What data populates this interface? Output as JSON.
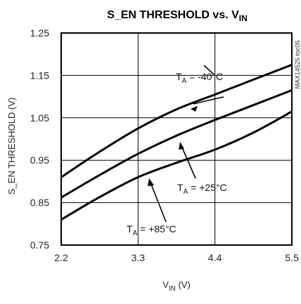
{
  "chart_data": {
    "type": "line",
    "title": {
      "main": "S_EN THRESHOLD vs. V",
      "sub": "IN"
    },
    "xlabel": {
      "main": "V",
      "sub": "IN",
      "suffix": " (V)"
    },
    "ylabel": "S_EN THRESHOLD (V)",
    "side_label": "MAX14525 toc05",
    "xlim": [
      2.2,
      5.5
    ],
    "ylim": [
      0.75,
      1.25
    ],
    "xticks": [
      "2.2",
      "3.3",
      "4.4",
      "5.5"
    ],
    "yticks": [
      "1.25",
      "1.15",
      "1.05",
      "0.95",
      "0.85",
      "0.75"
    ],
    "grid": true,
    "series": [
      {
        "name": "-40°C",
        "x": [
          2.2,
          2.75,
          3.3,
          3.85,
          4.4,
          4.95,
          5.5
        ],
        "y": [
          0.91,
          0.97,
          1.025,
          1.07,
          1.105,
          1.14,
          1.175
        ]
      },
      {
        "name": "+25°C",
        "x": [
          2.2,
          2.75,
          3.3,
          3.85,
          4.4,
          4.95,
          5.5
        ],
        "y": [
          0.862,
          0.915,
          0.965,
          1.008,
          1.045,
          1.08,
          1.115
        ]
      },
      {
        "name": "+85°C",
        "x": [
          2.2,
          2.75,
          3.3,
          3.85,
          4.4,
          4.95,
          5.5
        ],
        "y": [
          0.81,
          0.863,
          0.91,
          0.944,
          0.975,
          1.015,
          1.065
        ]
      }
    ],
    "annotations": [
      {
        "prefix": "T",
        "sub": "A",
        "text": " = -40°C"
      },
      {
        "prefix": "T",
        "sub": "A",
        "text": " = +25°C"
      },
      {
        "prefix": "T",
        "sub": "A",
        "text": " = +85°C"
      }
    ]
  }
}
